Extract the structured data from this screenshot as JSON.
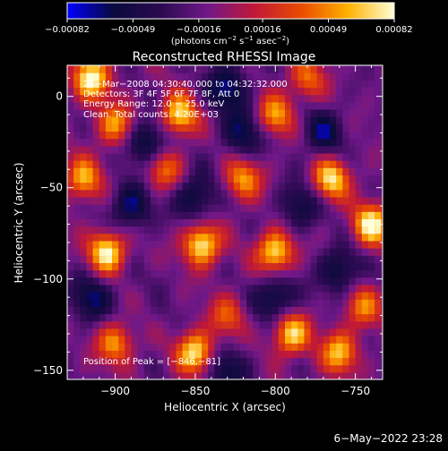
{
  "chart_data": {
    "type": "heatmap",
    "title": "Reconstructed RHESSI Image",
    "xlabel": "Heliocentric X (arcsec)",
    "ylabel": "Heliocentric Y (arcsec)",
    "xlim": [
      -930,
      -733
    ],
    "ylim": [
      -155,
      17
    ],
    "x_ticks": [
      -900,
      -850,
      -800,
      -750
    ],
    "y_ticks": [
      0,
      -50,
      -100,
      -150
    ],
    "x_tick_labels": [
      "−900",
      "−850",
      "−800",
      "−750"
    ],
    "y_tick_labels": [
      "0",
      "−50",
      "−100",
      "−150"
    ],
    "colorbar": {
      "range": [
        -0.00082,
        0.00082
      ],
      "ticks": [
        -0.00082,
        -0.00049,
        -0.00016,
        0.00016,
        0.00049,
        0.00082
      ],
      "tick_labels": [
        "−0.00082",
        "−0.00049",
        "−0.00016",
        "0.00016",
        "0.00049",
        "0.00082"
      ],
      "unit_prefix": "(photons cm",
      "unit_exp1": "−2",
      "unit_mid": " s",
      "unit_exp2": "−1",
      "unit_mid2": " asec",
      "unit_exp3": "−2",
      "unit_suffix": ")",
      "colors": [
        "#0000ff",
        "#0a0a3c",
        "#2a0a50",
        "#701888",
        "#c01838",
        "#e84a00",
        "#ffb000",
        "#ffffd8"
      ]
    },
    "annotations": {
      "time_range": "25−Mar−2008 04:30:40.000 to 04:32:32.000",
      "detectors": "Detectors: 3F 4F 5F 6F 7F 8F, Att 0",
      "energy": "Energy Range: 12.0 − 25.0 keV",
      "clean": "Clean. Total counts: 4.20E+03",
      "peak": "Position of Peak = [−846,−81]"
    },
    "grid": false,
    "cell_size_arcsec": 4,
    "hot_spots": [
      {
        "x": -915,
        "y": 10,
        "v": 1.0
      },
      {
        "x": -860,
        "y": -10,
        "v": 0.9
      },
      {
        "x": -800,
        "y": -10,
        "v": 0.7
      },
      {
        "x": -905,
        "y": -85,
        "v": 1.0
      },
      {
        "x": -846,
        "y": -81,
        "v": 1.0
      },
      {
        "x": -800,
        "y": -85,
        "v": 0.95
      },
      {
        "x": -740,
        "y": -70,
        "v": 1.0
      },
      {
        "x": -765,
        "y": -45,
        "v": 0.9
      },
      {
        "x": -920,
        "y": -45,
        "v": 0.75
      },
      {
        "x": -870,
        "y": -40,
        "v": 0.6
      },
      {
        "x": -820,
        "y": -45,
        "v": 0.7
      },
      {
        "x": -790,
        "y": -130,
        "v": 0.9
      },
      {
        "x": -850,
        "y": -140,
        "v": 0.95
      },
      {
        "x": -900,
        "y": -135,
        "v": 0.7
      },
      {
        "x": -760,
        "y": -140,
        "v": 0.8
      },
      {
        "x": -880,
        "y": -110,
        "v": 0.6
      },
      {
        "x": -780,
        "y": 10,
        "v": 0.55
      },
      {
        "x": -830,
        "y": -120,
        "v": 0.5
      },
      {
        "x": -745,
        "y": -115,
        "v": 0.6
      },
      {
        "x": -900,
        "y": -15,
        "v": 0.7
      }
    ],
    "cold_spots": [
      {
        "x": -880,
        "y": -25,
        "v": 0.9
      },
      {
        "x": -820,
        "y": -20,
        "v": 0.8
      },
      {
        "x": -890,
        "y": -60,
        "v": 0.85
      },
      {
        "x": -880,
        "y": -110,
        "v": 0.9
      },
      {
        "x": -800,
        "y": -110,
        "v": 0.85
      },
      {
        "x": -760,
        "y": -95,
        "v": 0.8
      },
      {
        "x": -830,
        "y": 5,
        "v": 0.9
      },
      {
        "x": -770,
        "y": -20,
        "v": 0.75
      },
      {
        "x": -850,
        "y": -55,
        "v": 0.8
      },
      {
        "x": -915,
        "y": -110,
        "v": 0.8
      },
      {
        "x": -830,
        "y": -150,
        "v": 0.7
      },
      {
        "x": -785,
        "y": -60,
        "v": 0.7
      }
    ]
  },
  "footer": {
    "timestamp": "6−May−2022 23:28"
  }
}
